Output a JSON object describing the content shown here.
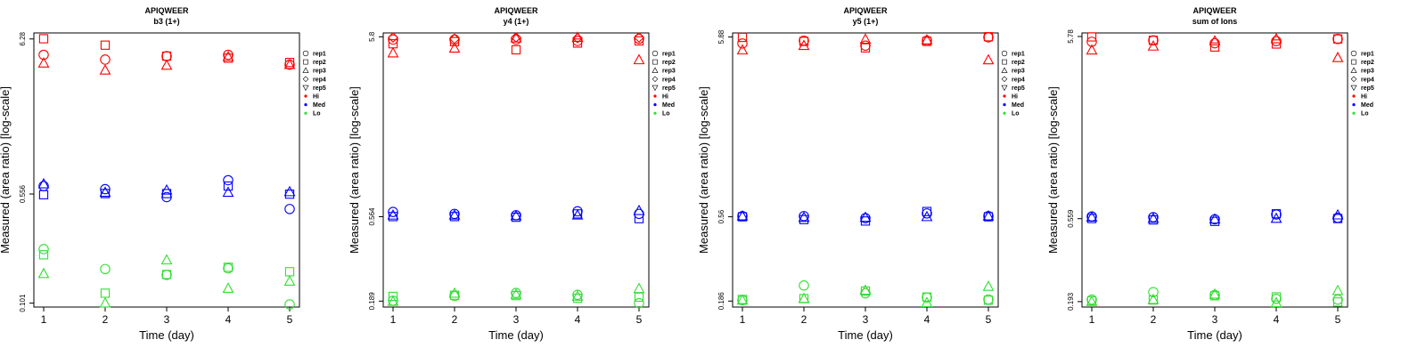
{
  "chart_data": [
    {
      "type": "scatter",
      "title": "APIQWEER",
      "subtitle": "b3 (1+)",
      "xlabel": "Time (day)",
      "ylabel": "Measured (area ratio) [log-scale]",
      "x_ticks": [
        "1",
        "2",
        "3",
        "4",
        "5"
      ],
      "y_scale": "log",
      "y_ticks": [
        "0.101",
        "0.556",
        "6.28"
      ],
      "ylim": [
        0.095,
        6.9
      ],
      "grid": false,
      "legend_position": "right",
      "legend": {
        "shapes": [
          "rep1",
          "rep2",
          "rep3",
          "rep4",
          "rep5"
        ],
        "colors": [
          "Hi",
          "Med",
          "Lo"
        ]
      },
      "series": [
        {
          "name": "Hi",
          "color": "#ff0000",
          "reps": {
            "rep1": [
              [
                1,
                4.9
              ],
              [
                2,
                4.55
              ],
              [
                3,
                4.8
              ],
              [
                4,
                4.9
              ],
              [
                5,
                4.2
              ]
            ],
            "rep2": [
              [
                1,
                6.3
              ],
              [
                2,
                5.7
              ],
              [
                3,
                4.8
              ],
              [
                4,
                4.65
              ],
              [
                5,
                4.35
              ]
            ],
            "rep3": [
              [
                1,
                4.3
              ],
              [
                2,
                3.85
              ],
              [
                3,
                4.15
              ],
              [
                4,
                4.75
              ],
              [
                5,
                4.2
              ]
            ]
          }
        },
        {
          "name": "Med",
          "color": "#0000ff",
          "reps": {
            "rep1": [
              [
                1,
                0.63
              ],
              [
                2,
                0.6
              ],
              [
                3,
                0.53
              ],
              [
                4,
                0.69
              ],
              [
                5,
                0.44
              ]
            ],
            "rep2": [
              [
                1,
                0.55
              ],
              [
                2,
                0.56
              ],
              [
                3,
                0.56
              ],
              [
                4,
                0.63
              ],
              [
                5,
                0.555
              ]
            ],
            "rep3": [
              [
                1,
                0.65
              ],
              [
                2,
                0.57
              ],
              [
                3,
                0.59
              ],
              [
                4,
                0.57
              ],
              [
                5,
                0.575
              ]
            ]
          }
        },
        {
          "name": "Lo",
          "color": "#33dd33",
          "reps": {
            "rep1": [
              [
                1,
                0.235
              ],
              [
                2,
                0.172
              ],
              [
                3,
                0.157
              ],
              [
                4,
                0.174
              ],
              [
                5,
                0.099
              ]
            ],
            "rep2": [
              [
                1,
                0.215
              ],
              [
                2,
                0.118
              ],
              [
                3,
                0.158
              ],
              [
                4,
                0.177
              ],
              [
                5,
                0.165
              ]
            ],
            "rep3": [
              [
                1,
                0.16
              ],
              [
                2,
                0.101
              ],
              [
                3,
                0.198
              ],
              [
                4,
                0.127
              ],
              [
                5,
                0.142
              ]
            ]
          }
        }
      ]
    },
    {
      "type": "scatter",
      "title": "APIQWEER",
      "subtitle": "y4 (1+)",
      "xlabel": "Time (day)",
      "ylabel": "Measured (area ratio) [log-scale]",
      "x_ticks": [
        "1",
        "2",
        "3",
        "4",
        "5"
      ],
      "y_scale": "log",
      "y_ticks": [
        "0.189",
        "0.564",
        "5.8"
      ],
      "ylim": [
        0.175,
        6.1
      ],
      "grid": false,
      "legend_position": "right",
      "legend": {
        "shapes": [
          "rep1",
          "rep2",
          "rep3",
          "rep4",
          "rep5"
        ],
        "colors": [
          "Hi",
          "Med",
          "Lo"
        ]
      },
      "series": [
        {
          "name": "Hi",
          "color": "#ff0000",
          "reps": {
            "rep1": [
              [
                1,
                5.6
              ],
              [
                2,
                5.6
              ],
              [
                3,
                5.6
              ],
              [
                4,
                5.5
              ],
              [
                5,
                5.65
              ]
            ],
            "rep2": [
              [
                1,
                5.3
              ],
              [
                2,
                5.45
              ],
              [
                3,
                4.9
              ],
              [
                4,
                5.35
              ],
              [
                5,
                5.5
              ]
            ],
            "rep3": [
              [
                1,
                4.7
              ],
              [
                2,
                5.0
              ],
              [
                3,
                5.7
              ],
              [
                4,
                5.75
              ],
              [
                5,
                4.3
              ]
            ],
            "rep4": [
              [
                1,
                5.75
              ],
              [
                2,
                5.65
              ],
              [
                3,
                5.75
              ],
              [
                4,
                5.7
              ],
              [
                5,
                5.75
              ]
            ]
          }
        },
        {
          "name": "Med",
          "color": "#0000ff",
          "reps": {
            "rep1": [
              [
                1,
                0.6
              ],
              [
                2,
                0.585
              ],
              [
                3,
                0.575
              ],
              [
                4,
                0.605
              ],
              [
                5,
                0.585
              ]
            ],
            "rep2": [
              [
                1,
                0.565
              ],
              [
                2,
                0.565
              ],
              [
                3,
                0.56
              ],
              [
                4,
                0.585
              ],
              [
                5,
                0.55
              ]
            ],
            "rep3": [
              [
                1,
                0.575
              ],
              [
                2,
                0.575
              ],
              [
                3,
                0.57
              ],
              [
                4,
                0.575
              ],
              [
                5,
                0.61
              ]
            ]
          }
        },
        {
          "name": "Lo",
          "color": "#33dd33",
          "reps": {
            "rep1": [
              [
                1,
                0.19
              ],
              [
                2,
                0.202
              ],
              [
                3,
                0.21
              ],
              [
                4,
                0.205
              ],
              [
                5,
                0.184
              ]
            ],
            "rep2": [
              [
                1,
                0.201
              ],
              [
                2,
                0.204
              ],
              [
                3,
                0.203
              ],
              [
                4,
                0.196
              ],
              [
                5,
                0.199
              ]
            ],
            "rep3": [
              [
                1,
                0.188
              ],
              [
                2,
                0.209
              ],
              [
                3,
                0.206
              ],
              [
                4,
                0.201
              ],
              [
                5,
                0.222
              ]
            ]
          }
        }
      ]
    },
    {
      "type": "scatter",
      "title": "APIQWEER",
      "subtitle": "y5 (1+)",
      "xlabel": "Time (day)",
      "ylabel": "Measured (area ratio) [log-scale]",
      "x_ticks": [
        "1",
        "2",
        "3",
        "4",
        "5"
      ],
      "y_scale": "log",
      "y_ticks": [
        "0.186",
        "0.56",
        "5.88"
      ],
      "ylim": [
        0.172,
        6.2
      ],
      "grid": false,
      "legend_position": "right",
      "legend": {
        "shapes": [
          "rep1",
          "rep2",
          "rep3",
          "rep4",
          "rep5"
        ],
        "colors": [
          "Hi",
          "Med",
          "Lo"
        ]
      },
      "series": [
        {
          "name": "Hi",
          "color": "#ff0000",
          "reps": {
            "rep1": [
              [
                1,
                5.4
              ],
              [
                2,
                5.6
              ],
              [
                3,
                5.25
              ],
              [
                4,
                5.6
              ],
              [
                5,
                5.85
              ]
            ],
            "rep2": [
              [
                1,
                5.85
              ],
              [
                2,
                5.55
              ],
              [
                3,
                5.1
              ],
              [
                4,
                5.55
              ],
              [
                5,
                5.9
              ]
            ],
            "rep3": [
              [
                1,
                4.95
              ],
              [
                2,
                5.25
              ],
              [
                3,
                5.7
              ],
              [
                4,
                5.65
              ],
              [
                5,
                4.35
              ]
            ]
          }
        },
        {
          "name": "Med",
          "color": "#0000ff",
          "reps": {
            "rep1": [
              [
                1,
                0.565
              ],
              [
                2,
                0.565
              ],
              [
                3,
                0.55
              ],
              [
                4,
                0.585
              ],
              [
                5,
                0.565
              ]
            ],
            "rep2": [
              [
                1,
                0.56
              ],
              [
                2,
                0.54
              ],
              [
                3,
                0.53
              ],
              [
                4,
                0.6
              ],
              [
                5,
                0.56
              ]
            ],
            "rep3": [
              [
                1,
                0.565
              ],
              [
                2,
                0.555
              ],
              [
                3,
                0.555
              ],
              [
                4,
                0.56
              ],
              [
                5,
                0.565
              ]
            ]
          }
        },
        {
          "name": "Lo",
          "color": "#33dd33",
          "reps": {
            "rep1": [
              [
                1,
                0.188
              ],
              [
                2,
                0.228
              ],
              [
                3,
                0.206
              ],
              [
                4,
                0.195
              ],
              [
                5,
                0.19
              ]
            ],
            "rep2": [
              [
                1,
                0.19
              ],
              [
                2,
                0.192
              ],
              [
                3,
                0.212
              ],
              [
                4,
                0.196
              ],
              [
                5,
                0.188
              ]
            ],
            "rep3": [
              [
                1,
                0.188
              ],
              [
                2,
                0.192
              ],
              [
                3,
                0.214
              ],
              [
                4,
                0.182
              ],
              [
                5,
                0.225
              ]
            ]
          }
        }
      ]
    },
    {
      "type": "scatter",
      "title": "APIQWEER",
      "subtitle": "sum of Ions",
      "xlabel": "Time (day)",
      "ylabel": "Measured (area ratio) [log-scale]",
      "x_ticks": [
        "1",
        "2",
        "3",
        "4",
        "5"
      ],
      "y_scale": "log",
      "y_ticks": [
        "0.193",
        "0.559",
        "5.78"
      ],
      "ylim": [
        0.18,
        6.05
      ],
      "grid": false,
      "legend_position": "right",
      "legend": {
        "shapes": [
          "rep1",
          "rep2",
          "rep3",
          "rep4",
          "rep5"
        ],
        "colors": [
          "Hi",
          "Med",
          "Lo"
        ]
      },
      "series": [
        {
          "name": "Hi",
          "color": "#ff0000",
          "reps": {
            "rep1": [
              [
                1,
                5.4
              ],
              [
                2,
                5.5
              ],
              [
                3,
                5.3
              ],
              [
                4,
                5.45
              ],
              [
                5,
                5.6
              ]
            ],
            "rep2": [
              [
                1,
                5.75
              ],
              [
                2,
                5.5
              ],
              [
                3,
                5.05
              ],
              [
                4,
                5.25
              ],
              [
                5,
                5.6
              ]
            ],
            "rep3": [
              [
                1,
                4.85
              ],
              [
                2,
                5.1
              ],
              [
                3,
                5.45
              ],
              [
                4,
                5.6
              ],
              [
                5,
                4.4
              ]
            ]
          }
        },
        {
          "name": "Med",
          "color": "#0000ff",
          "reps": {
            "rep1": [
              [
                1,
                0.575
              ],
              [
                2,
                0.57
              ],
              [
                3,
                0.555
              ],
              [
                4,
                0.59
              ],
              [
                5,
                0.565
              ]
            ],
            "rep2": [
              [
                1,
                0.56
              ],
              [
                2,
                0.55
              ],
              [
                3,
                0.54
              ],
              [
                4,
                0.595
              ],
              [
                5,
                0.56
              ]
            ],
            "rep3": [
              [
                1,
                0.57
              ],
              [
                2,
                0.56
              ],
              [
                3,
                0.555
              ],
              [
                4,
                0.56
              ],
              [
                5,
                0.585
              ]
            ]
          }
        },
        {
          "name": "Lo",
          "color": "#33dd33",
          "reps": {
            "rep1": [
              [
                1,
                0.198
              ],
              [
                2,
                0.218
              ],
              [
                3,
                0.21
              ],
              [
                4,
                0.2
              ],
              [
                5,
                0.198
              ]
            ],
            "rep2": [
              [
                1,
                0.195
              ],
              [
                2,
                0.197
              ],
              [
                3,
                0.208
              ],
              [
                4,
                0.205
              ],
              [
                5,
                0.192
              ]
            ],
            "rep3": [
              [
                1,
                0.193
              ],
              [
                2,
                0.198
              ],
              [
                3,
                0.212
              ],
              [
                4,
                0.19
              ],
              [
                5,
                0.222
              ]
            ]
          }
        }
      ]
    }
  ]
}
